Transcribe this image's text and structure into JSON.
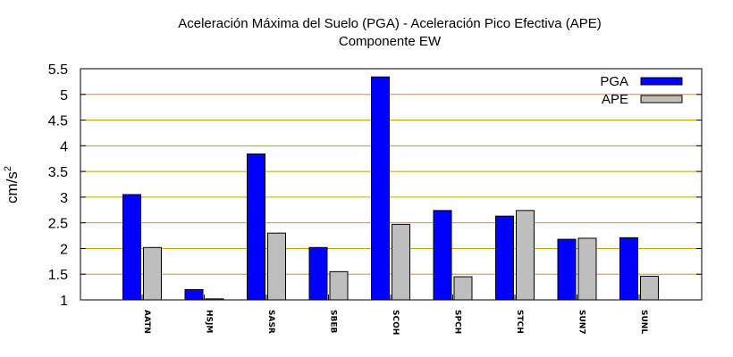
{
  "chart_data": {
    "type": "bar",
    "title": "Aceleración Máxima del Suelo (PGA) -  Aceleración Pico Efectiva (APE)",
    "subtitle": "Componente EW",
    "ylabel": "cm/s",
    "ylabel_superscript": "2",
    "ylim": [
      1,
      5.5
    ],
    "yticks": [
      "1",
      "1.5",
      "2",
      "2.5",
      "3",
      "3.5",
      "4",
      "4.5",
      "5",
      "5.5"
    ],
    "categories": [
      "AATN",
      "HSJM",
      "SASR",
      "SBEB",
      "SCOH",
      "SPCH",
      "STCH",
      "SUN7",
      "SUNL"
    ],
    "series": [
      {
        "name": "PGA",
        "color": "#0000ff",
        "values": [
          3.05,
          1.2,
          3.84,
          2.02,
          5.34,
          2.74,
          2.63,
          2.18,
          2.21
        ]
      },
      {
        "name": "APE",
        "color": "#bebebe",
        "values": [
          2.02,
          1.02,
          2.3,
          1.55,
          2.47,
          1.45,
          2.74,
          2.2,
          1.46
        ]
      }
    ],
    "grid": "horizontal",
    "grid_color": "#c8a000",
    "legend_position": "top-right"
  }
}
